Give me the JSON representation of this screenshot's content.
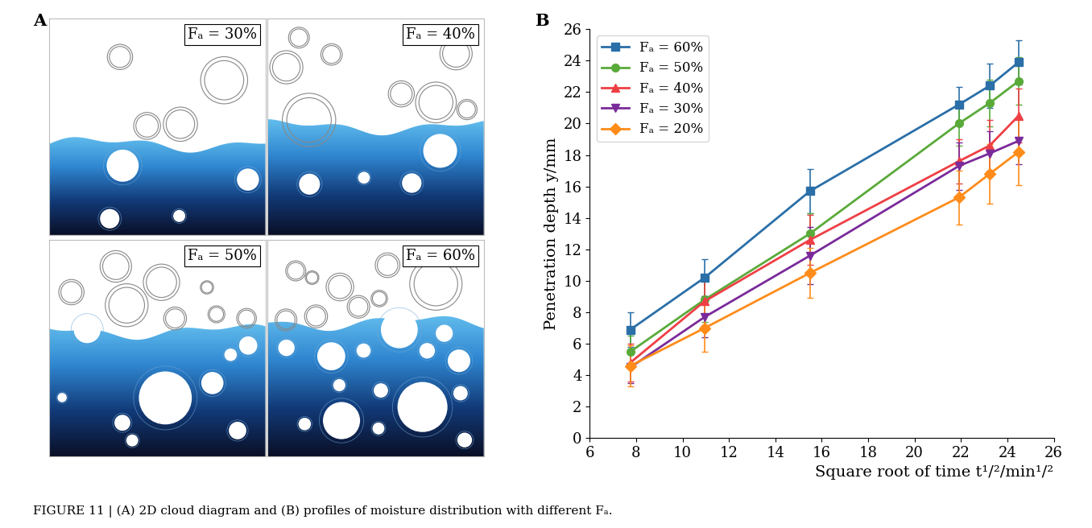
{
  "caption": "FIGURE 11 | (A) 2D cloud diagram and (B) profiles of moisture distribution with different Fₐ.",
  "panel_labels": [
    "A",
    "B"
  ],
  "panel_a": {
    "panels": [
      "Fₐ = 30%",
      "Fₐ = 40%",
      "Fₐ = 50%",
      "Fₐ = 60%"
    ]
  },
  "chart_data": {
    "type": "line",
    "x_label": "Square root of time t¹/²/min¹/²",
    "y_label": "Penetration depth y/mm",
    "x": [
      7.75,
      10.95,
      15.49,
      21.91,
      23.24,
      24.49
    ],
    "series": [
      {
        "name": "Fₐ = 60%",
        "color": "#2a6fa8",
        "marker": "square",
        "values": [
          6.9,
          10.2,
          15.7,
          21.2,
          22.4,
          23.9
        ],
        "errors": [
          1.1,
          1.2,
          1.4,
          1.1,
          1.4,
          1.4
        ]
      },
      {
        "name": "Fₐ = 50%",
        "color": "#5aaa3a",
        "marker": "circle",
        "values": [
          5.5,
          8.8,
          13.0,
          20.0,
          21.3,
          22.7
        ],
        "errors": [
          1.0,
          1.4,
          1.3,
          1.4,
          1.5,
          1.5
        ]
      },
      {
        "name": "Fₐ = 40%",
        "color": "#ee3f45",
        "marker": "triangle_up",
        "values": [
          4.8,
          8.7,
          12.6,
          17.6,
          18.6,
          20.5
        ],
        "errors": [
          1.2,
          1.5,
          1.6,
          1.4,
          1.6,
          1.7
        ]
      },
      {
        "name": "Fₐ = 30%",
        "color": "#7a2a9a",
        "marker": "triangle_down",
        "values": [
          4.5,
          7.7,
          11.6,
          17.3,
          18.1,
          18.9
        ],
        "errors": [
          1.0,
          1.3,
          1.8,
          1.5,
          1.4,
          1.5
        ]
      },
      {
        "name": "Fₐ = 20%",
        "color": "#ff8c1a",
        "marker": "diamond",
        "values": [
          4.6,
          7.0,
          10.5,
          15.3,
          16.8,
          18.2
        ],
        "errors": [
          1.3,
          1.5,
          1.6,
          1.7,
          1.9,
          2.1
        ]
      }
    ],
    "xlim": [
      6,
      26
    ],
    "xticks": [
      6,
      8,
      10,
      12,
      14,
      16,
      18,
      20,
      22,
      24,
      26
    ],
    "ylim": [
      0,
      26
    ],
    "yticks": [
      0,
      2,
      4,
      6,
      8,
      10,
      12,
      14,
      16,
      18,
      20,
      22,
      24,
      26
    ],
    "legend": "upper left",
    "grid": false
  }
}
